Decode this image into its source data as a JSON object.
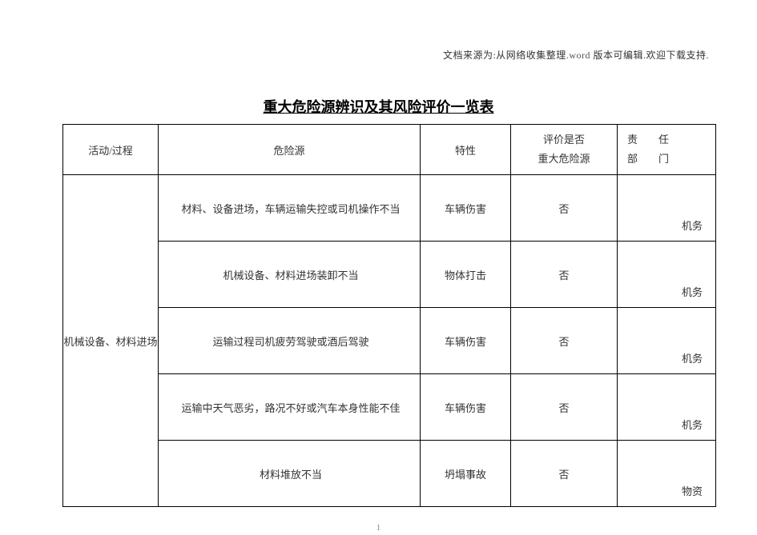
{
  "header_note": "文档来源为:从网络收集整理.word 版本可编辑.欢迎下载支持.",
  "header_note_cn_prefix": "文档来源为:从网络收集整理",
  "header_note_en": ".word ",
  "header_note_cn_suffix": "版本可编辑.欢迎下载支持.",
  "title": "重大危险源辨识及其风险评价一览表",
  "columns": {
    "activity": "活动/过程",
    "source": "危险源",
    "character": "特性",
    "eval_line1": "评价是否",
    "eval_line2": "重大危险源",
    "dept_line1": "责　　任",
    "dept_line2": "部　　门"
  },
  "activity_group": "机械设备、材料进场",
  "rows": [
    {
      "source": "材料、设备进场，车辆运输失控或司机操作不当",
      "character": "车辆伤害",
      "eval": "否",
      "dept": "机务"
    },
    {
      "source": "机械设备、材料进场装卸不当",
      "character": "物体打击",
      "eval": "否",
      "dept": "机务"
    },
    {
      "source": "运输过程司机疲劳驾驶或酒后驾驶",
      "character": "车辆伤害",
      "eval": "否",
      "dept": "机务"
    },
    {
      "source": "运输中天气恶劣，路况不好或汽车本身性能不佳",
      "character": "车辆伤害",
      "eval": "否",
      "dept": "机务"
    },
    {
      "source": "材料堆放不当",
      "character": "坍塌事故",
      "eval": "否",
      "dept": "物资"
    }
  ],
  "page_number": "1"
}
